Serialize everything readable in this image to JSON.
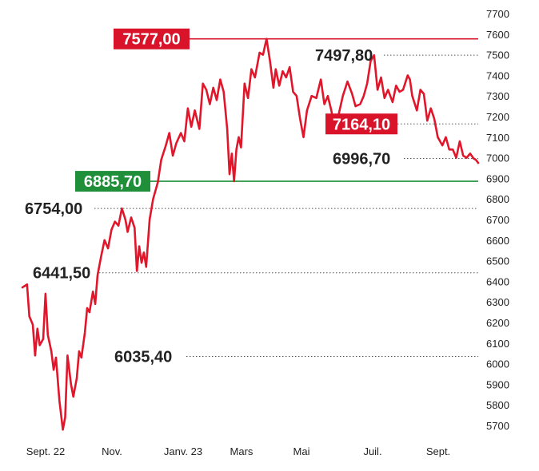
{
  "chart_data": {
    "type": "line",
    "title": "",
    "xlabel": "",
    "ylabel": "",
    "ylim": [
      5650,
      7700
    ],
    "yticks": [
      5700,
      5800,
      5900,
      6000,
      6100,
      6200,
      6300,
      6400,
      6500,
      6600,
      6700,
      6800,
      6900,
      7000,
      7100,
      7200,
      7300,
      7400,
      7500,
      7600,
      7700
    ],
    "xtick_labels": [
      "Sept. 22",
      "Nov.",
      "Janv. 23",
      "Mars",
      "Mai",
      "Juil.",
      "Sept."
    ],
    "x_range": [
      "2022-09-01",
      "2023-09-30"
    ],
    "grid": false,
    "colors": {
      "line": "#e0162b",
      "high": "#d8132a",
      "support": "#1f8f3a",
      "guide": "#555555",
      "text": "#222222"
    },
    "series": [
      {
        "values": [
          [
            "2022-09-01",
            6370
          ],
          [
            "2022-09-05",
            6385
          ],
          [
            "2022-09-07",
            6230
          ],
          [
            "2022-09-10",
            6190
          ],
          [
            "2022-09-12",
            6040
          ],
          [
            "2022-09-14",
            6170
          ],
          [
            "2022-09-16",
            6090
          ],
          [
            "2022-09-19",
            6120
          ],
          [
            "2022-09-21",
            6340
          ],
          [
            "2022-09-23",
            6140
          ],
          [
            "2022-09-26",
            6060
          ],
          [
            "2022-09-28",
            5970
          ],
          [
            "2022-09-30",
            6030
          ],
          [
            "2022-10-03",
            5820
          ],
          [
            "2022-10-06",
            5680
          ],
          [
            "2022-10-08",
            5740
          ],
          [
            "2022-10-10",
            6040
          ],
          [
            "2022-10-13",
            5900
          ],
          [
            "2022-10-15",
            5840
          ],
          [
            "2022-10-18",
            5930
          ],
          [
            "2022-10-20",
            6060
          ],
          [
            "2022-10-22",
            6030
          ],
          [
            "2022-10-25",
            6150
          ],
          [
            "2022-10-27",
            6270
          ],
          [
            "2022-10-29",
            6250
          ],
          [
            "2022-11-01",
            6350
          ],
          [
            "2022-11-03",
            6290
          ],
          [
            "2022-11-05",
            6430
          ],
          [
            "2022-11-08",
            6520
          ],
          [
            "2022-11-11",
            6600
          ],
          [
            "2022-11-14",
            6560
          ],
          [
            "2022-11-17",
            6650
          ],
          [
            "2022-11-20",
            6690
          ],
          [
            "2022-11-23",
            6670
          ],
          [
            "2022-11-26",
            6754
          ],
          [
            "2022-11-29",
            6700
          ],
          [
            "2022-12-01",
            6640
          ],
          [
            "2022-12-04",
            6710
          ],
          [
            "2022-12-07",
            6660
          ],
          [
            "2022-12-09",
            6450
          ],
          [
            "2022-12-11",
            6570
          ],
          [
            "2022-12-13",
            6490
          ],
          [
            "2022-12-15",
            6540
          ],
          [
            "2022-12-17",
            6470
          ],
          [
            "2022-12-20",
            6700
          ],
          [
            "2022-12-23",
            6800
          ],
          [
            "2022-12-27",
            6880
          ],
          [
            "2022-12-30",
            6990
          ],
          [
            "2023-01-03",
            7060
          ],
          [
            "2023-01-06",
            7120
          ],
          [
            "2023-01-09",
            7010
          ],
          [
            "2023-01-12",
            7070
          ],
          [
            "2023-01-16",
            7120
          ],
          [
            "2023-01-19",
            7080
          ],
          [
            "2023-01-22",
            7240
          ],
          [
            "2023-01-25",
            7150
          ],
          [
            "2023-01-28",
            7230
          ],
          [
            "2023-02-01",
            7140
          ],
          [
            "2023-02-04",
            7360
          ],
          [
            "2023-02-07",
            7330
          ],
          [
            "2023-02-10",
            7260
          ],
          [
            "2023-02-13",
            7340
          ],
          [
            "2023-02-16",
            7280
          ],
          [
            "2023-02-19",
            7380
          ],
          [
            "2023-02-22",
            7320
          ],
          [
            "2023-02-25",
            7140
          ],
          [
            "2023-02-27",
            6920
          ],
          [
            "2023-03-01",
            7020
          ],
          [
            "2023-03-03",
            6886
          ],
          [
            "2023-03-05",
            7040
          ],
          [
            "2023-03-07",
            7100
          ],
          [
            "2023-03-09",
            7050
          ],
          [
            "2023-03-12",
            7360
          ],
          [
            "2023-03-15",
            7290
          ],
          [
            "2023-03-18",
            7430
          ],
          [
            "2023-03-21",
            7390
          ],
          [
            "2023-03-25",
            7510
          ],
          [
            "2023-03-28",
            7500
          ],
          [
            "2023-03-31",
            7577
          ],
          [
            "2023-04-03",
            7470
          ],
          [
            "2023-04-06",
            7340
          ],
          [
            "2023-04-08",
            7430
          ],
          [
            "2023-04-11",
            7350
          ],
          [
            "2023-04-14",
            7420
          ],
          [
            "2023-04-17",
            7390
          ],
          [
            "2023-04-20",
            7440
          ],
          [
            "2023-04-23",
            7320
          ],
          [
            "2023-04-26",
            7300
          ],
          [
            "2023-04-29",
            7190
          ],
          [
            "2023-05-02",
            7100
          ],
          [
            "2023-05-05",
            7230
          ],
          [
            "2023-05-09",
            7300
          ],
          [
            "2023-05-13",
            7290
          ],
          [
            "2023-05-17",
            7380
          ],
          [
            "2023-05-20",
            7260
          ],
          [
            "2023-05-23",
            7300
          ],
          [
            "2023-05-26",
            7230
          ],
          [
            "2023-05-29",
            7140
          ],
          [
            "2023-06-01",
            7200
          ],
          [
            "2023-06-05",
            7300
          ],
          [
            "2023-06-09",
            7370
          ],
          [
            "2023-06-13",
            7310
          ],
          [
            "2023-06-16",
            7250
          ],
          [
            "2023-06-20",
            7260
          ],
          [
            "2023-06-23",
            7300
          ],
          [
            "2023-06-26",
            7360
          ],
          [
            "2023-06-29",
            7470
          ],
          [
            "2023-07-02",
            7497.8
          ],
          [
            "2023-07-05",
            7330
          ],
          [
            "2023-07-08",
            7390
          ],
          [
            "2023-07-11",
            7290
          ],
          [
            "2023-07-14",
            7330
          ],
          [
            "2023-07-18",
            7270
          ],
          [
            "2023-07-21",
            7350
          ],
          [
            "2023-07-24",
            7320
          ],
          [
            "2023-07-27",
            7330
          ],
          [
            "2023-07-31",
            7400
          ],
          [
            "2023-08-02",
            7380
          ],
          [
            "2023-08-04",
            7300
          ],
          [
            "2023-08-08",
            7230
          ],
          [
            "2023-08-11",
            7330
          ],
          [
            "2023-08-14",
            7310
          ],
          [
            "2023-08-17",
            7180
          ],
          [
            "2023-08-20",
            7240
          ],
          [
            "2023-08-23",
            7190
          ],
          [
            "2023-08-26",
            7100
          ],
          [
            "2023-08-30",
            7060
          ],
          [
            "2023-09-02",
            7100
          ],
          [
            "2023-09-05",
            7040
          ],
          [
            "2023-09-08",
            7040
          ],
          [
            "2023-09-11",
            7000
          ],
          [
            "2023-09-14",
            7080
          ],
          [
            "2023-09-17",
            7010
          ],
          [
            "2023-09-20",
            7000
          ],
          [
            "2023-09-23",
            7020
          ],
          [
            "2023-09-26",
            6996.7
          ],
          [
            "2023-09-28",
            6990
          ],
          [
            "2023-09-30",
            6975
          ]
        ]
      }
    ],
    "annotations": [
      {
        "text": "7577,00",
        "value": 7577.0,
        "style": "red-box",
        "line": "solid-red"
      },
      {
        "text": "7497,80",
        "value": 7497.8,
        "style": "plain",
        "line": "dotted"
      },
      {
        "text": "7164,10",
        "value": 7164.1,
        "style": "red-box",
        "line": "dotted"
      },
      {
        "text": "6996,70",
        "value": 6996.7,
        "style": "plain",
        "line": "dotted"
      },
      {
        "text": "6885,70",
        "value": 6885.7,
        "style": "green-box",
        "line": "solid-green"
      },
      {
        "text": "6754,00",
        "value": 6754.0,
        "style": "plain",
        "line": "dotted"
      },
      {
        "text": "6441,50",
        "value": 6441.5,
        "style": "plain",
        "line": "dotted"
      },
      {
        "text": "6035,40",
        "value": 6035.4,
        "style": "plain",
        "line": "dotted"
      }
    ]
  }
}
